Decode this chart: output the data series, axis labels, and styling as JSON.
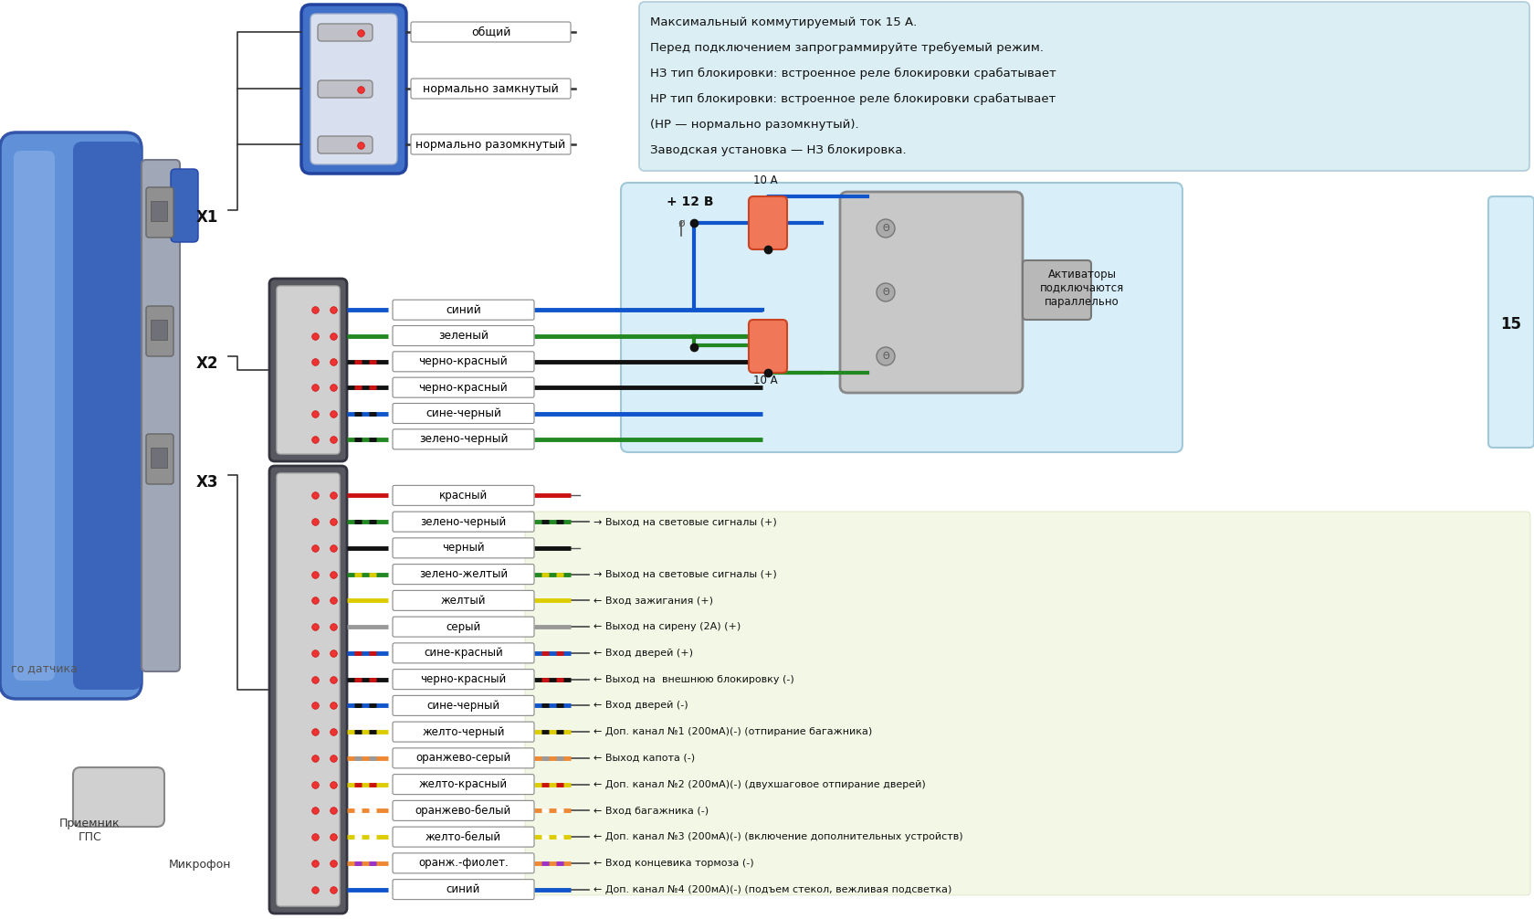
{
  "bg_color": "#ffffff",
  "info_lines": [
    "Максимальный коммутируемый ток 15 А.",
    "Перед подключением запрограммируйте требуемый режим.",
    "НЗ тип блокировки: встроенное реле блокировки срабатывает",
    "НР тип блокировки: встроенное реле блокировки срабатывает",
    "(НР — нормально разомкнутый).",
    "Заводская установка — НЗ блокировка."
  ],
  "x1_wires": [
    {
      "label": "общий",
      "color1": "#333333",
      "color2": null
    },
    {
      "label": "нормально замкнутый",
      "color1": "#333333",
      "color2": null
    },
    {
      "label": "нормально разомкнутый",
      "color1": "#333333",
      "color2": null
    }
  ],
  "x2_wires": [
    {
      "label": "синий",
      "color1": "#1155cc",
      "color2": null
    },
    {
      "label": "зеленый",
      "color1": "#228822",
      "color2": null
    },
    {
      "label": "черно-красный",
      "color1": "#111111",
      "color2": "#cc1111"
    },
    {
      "label": "черно-красный",
      "color1": "#111111",
      "color2": "#cc1111"
    },
    {
      "label": "сине-черный",
      "color1": "#1155cc",
      "color2": "#111111"
    },
    {
      "label": "зелено-черный",
      "color1": "#228822",
      "color2": "#111111"
    }
  ],
  "x3_wires": [
    {
      "label": "красный",
      "color1": "#cc1111",
      "color2": null,
      "right": ""
    },
    {
      "label": "зелено-черный",
      "color1": "#228822",
      "color2": "#111111",
      "right": "→ Выход на световые сигналы (+)"
    },
    {
      "label": "черный",
      "color1": "#111111",
      "color2": null,
      "right": ""
    },
    {
      "label": "зелено-желтый",
      "color1": "#228822",
      "color2": "#ddcc00",
      "right": "→ Выход на световые сигналы (+)"
    },
    {
      "label": "желтый",
      "color1": "#ddcc00",
      "color2": null,
      "right": "← Вход зажигания (+)"
    },
    {
      "label": "серый",
      "color1": "#999999",
      "color2": null,
      "right": "← Выход на сирену (2А) (+)"
    },
    {
      "label": "сине-красный",
      "color1": "#1155cc",
      "color2": "#cc1111",
      "right": "← Вход дверей (+)"
    },
    {
      "label": "черно-красный",
      "color1": "#111111",
      "color2": "#cc1111",
      "right": "← Выход на  внешнюю блокировку (-)"
    },
    {
      "label": "сине-черный",
      "color1": "#1155cc",
      "color2": "#111111",
      "right": "← Вход дверей (-)"
    },
    {
      "label": "желто-черный",
      "color1": "#ddcc00",
      "color2": "#111111",
      "right": "← Доп. канал №1 (200мА)(-) (отпирание багажника)"
    },
    {
      "label": "оранжево-серый",
      "color1": "#ee8833",
      "color2": "#999999",
      "right": "← Выход капота (-)"
    },
    {
      "label": "желто-красный",
      "color1": "#ddcc00",
      "color2": "#cc1111",
      "right": "← Доп. канал №2 (200мА)(-) (двухшаговое отпирание дверей)"
    },
    {
      "label": "оранжево-белый",
      "color1": "#ee8833",
      "color2": "#ffffff",
      "right": "← Вход багажника (-)"
    },
    {
      "label": "желто-белый",
      "color1": "#ddcc00",
      "color2": "#ffffff",
      "right": "← Доп. канал №3 (200мА)(-) (включение дополнительных устройств)"
    },
    {
      "label": "оранж.-фиолет.",
      "color1": "#ee8833",
      "color2": "#9933cc",
      "right": "← Вход концевика тормоза (-)"
    },
    {
      "label": "синий",
      "color1": "#1155cc",
      "color2": null,
      "right": "← Доп. канал №4 (200мА)(-) (подъем стекол, вежливая подсветка)"
    }
  ],
  "activation_text": "Активаторы\nподключаются\nпараллельно",
  "gps_label": "Приемник\nГПС",
  "mic_label": "Микрофон",
  "sensor_label": "го датчика",
  "plus_12v": "+ 12 В"
}
